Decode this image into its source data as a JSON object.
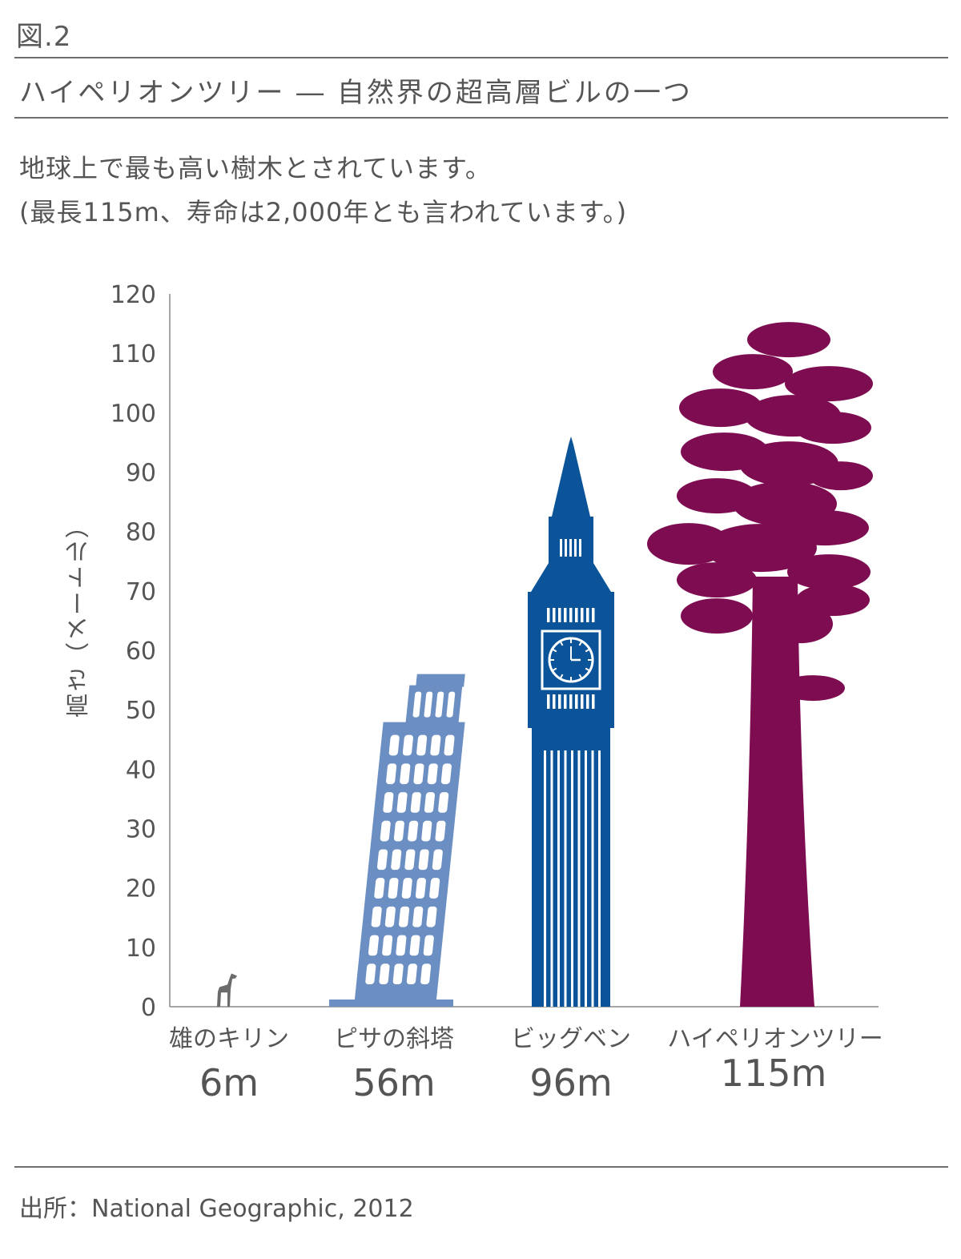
{
  "figure_label": "図.2",
  "title": "ハイペリオンツリー ― 自然界の超高層ビルの一つ",
  "description_line1": "地球上で最も高い樹木とされています。",
  "description_line2": "(最長115m、寿命は2,000年とも言われています。)",
  "source": "出所：National Geographic, 2012",
  "colors": {
    "text": "#555555",
    "axis": "#888888",
    "giraffe": "#6b6b6b",
    "pisa": "#6b8fc2",
    "big_ben": "#0b5499",
    "tree": "#7d0c50"
  },
  "chart_data": {
    "type": "bar",
    "ylabel": "高さ（メートル）",
    "ylim": [
      0,
      120
    ],
    "yticks": [
      0,
      10,
      20,
      30,
      40,
      50,
      60,
      70,
      80,
      90,
      100,
      110,
      120
    ],
    "categories": [
      "雄のキリン",
      "ピサの斜塔",
      "ビッグベン",
      "ハイペリオンツリー"
    ],
    "values": [
      6,
      56,
      96,
      115
    ],
    "value_labels": [
      "6m",
      "56m",
      "96m",
      "115m"
    ],
    "icons": [
      "giraffe-icon",
      "leaning-tower-icon",
      "clock-tower-icon",
      "tree-icon"
    ],
    "grid": false,
    "legend": "none"
  }
}
